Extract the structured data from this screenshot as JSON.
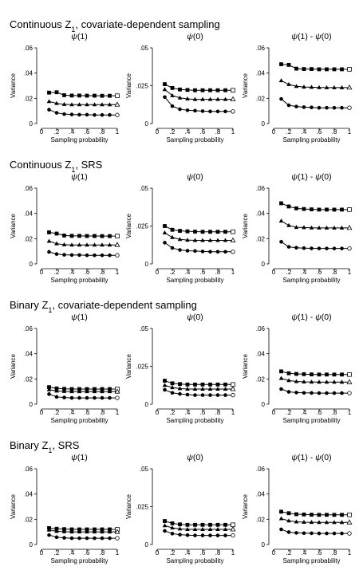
{
  "chart_data": [
    {
      "type": "line",
      "row_title": "Continuous Z1, covariate-dependent sampling",
      "title": "ψ(1)",
      "xlabel": "Sampling probability",
      "ylabel": "Variance",
      "xlim": [
        0,
        1
      ],
      "ylim": [
        0,
        0.06
      ],
      "xticks": [
        0,
        0.2,
        0.4,
        0.6,
        0.8,
        1
      ],
      "xticklabels": [
        "0",
        ".2",
        ".4",
        ".6",
        ".8",
        "1"
      ],
      "yticks": [
        0,
        0.02,
        0.04,
        0.06
      ],
      "yticklabels": [
        "0",
        ".02",
        ".04",
        ".06"
      ],
      "x": [
        0.1,
        0.2,
        0.3,
        0.4,
        0.5,
        0.6,
        0.7,
        0.8,
        0.9,
        1.0
      ],
      "series": [
        {
          "marker": "square",
          "values": [
            0.0245,
            0.0248,
            0.0225,
            0.0222,
            0.0222,
            0.0221,
            0.0221,
            0.022,
            0.022,
            0.022
          ]
        },
        {
          "marker": "triangle",
          "values": [
            0.0175,
            0.016,
            0.0152,
            0.015,
            0.015,
            0.015,
            0.015,
            0.015,
            0.015,
            0.015
          ]
        },
        {
          "marker": "circle",
          "values": [
            0.011,
            0.0085,
            0.0075,
            0.0072,
            0.007,
            0.007,
            0.0068,
            0.0068,
            0.0068,
            0.0068
          ]
        }
      ]
    },
    {
      "type": "line",
      "row_title": "Continuous Z1, covariate-dependent sampling",
      "title": "ψ(0)",
      "xlabel": "Sampling probability",
      "ylabel": "Variance",
      "xlim": [
        0,
        1
      ],
      "ylim": [
        0,
        0.05
      ],
      "xticks": [
        0,
        0.2,
        0.4,
        0.6,
        0.8,
        1
      ],
      "xticklabels": [
        "0",
        ".2",
        ".4",
        ".6",
        ".8",
        "1"
      ],
      "yticks": [
        0,
        0.025,
        0.05
      ],
      "yticklabels": [
        "0",
        ".025",
        ".05"
      ],
      "x": [
        0.1,
        0.2,
        0.3,
        0.4,
        0.5,
        0.6,
        0.7,
        0.8,
        0.9,
        1.0
      ],
      "series": [
        {
          "marker": "square",
          "values": [
            0.026,
            0.0235,
            0.0225,
            0.0222,
            0.022,
            0.022,
            0.022,
            0.022,
            0.022,
            0.022
          ]
        },
        {
          "marker": "triangle",
          "values": [
            0.0225,
            0.0185,
            0.017,
            0.0163,
            0.016,
            0.016,
            0.016,
            0.016,
            0.016,
            0.016
          ]
        },
        {
          "marker": "circle",
          "values": [
            0.0175,
            0.0115,
            0.0095,
            0.0088,
            0.0085,
            0.0082,
            0.008,
            0.008,
            0.008,
            0.008
          ]
        }
      ]
    },
    {
      "type": "line",
      "row_title": "Continuous Z1, covariate-dependent sampling",
      "title": "ψ(1) - ψ(0)",
      "xlabel": "Sampling probability",
      "ylabel": "Variance",
      "xlim": [
        0,
        1
      ],
      "ylim": [
        0,
        0.06
      ],
      "xticks": [
        0,
        0.2,
        0.4,
        0.6,
        0.8,
        1
      ],
      "xticklabels": [
        "0",
        ".2",
        ".4",
        ".6",
        ".8",
        "1"
      ],
      "yticks": [
        0,
        0.02,
        0.04,
        0.06
      ],
      "yticklabels": [
        "0",
        ".02",
        ".04",
        ".06"
      ],
      "x": [
        0.1,
        0.2,
        0.3,
        0.4,
        0.5,
        0.6,
        0.7,
        0.8,
        0.9,
        1.0
      ],
      "series": [
        {
          "marker": "square",
          "values": [
            0.047,
            0.0465,
            0.0435,
            0.0432,
            0.0432,
            0.043,
            0.043,
            0.043,
            0.043,
            0.043
          ]
        },
        {
          "marker": "triangle",
          "values": [
            0.034,
            0.031,
            0.0295,
            0.029,
            0.0288,
            0.0286,
            0.0285,
            0.0285,
            0.0285,
            0.0285
          ]
        },
        {
          "marker": "circle",
          "values": [
            0.0195,
            0.0145,
            0.0135,
            0.013,
            0.0128,
            0.0125,
            0.0125,
            0.0125,
            0.0125,
            0.0125
          ]
        }
      ]
    },
    {
      "type": "line",
      "row_title": "Continuous Z1, SRS",
      "title": "ψ(1)",
      "xlabel": "Sampling probability",
      "ylabel": "Variance",
      "xlim": [
        0,
        1
      ],
      "ylim": [
        0,
        0.06
      ],
      "xticks": [
        0,
        0.2,
        0.4,
        0.6,
        0.8,
        1
      ],
      "xticklabels": [
        "0",
        ".2",
        ".4",
        ".6",
        ".8",
        "1"
      ],
      "yticks": [
        0,
        0.02,
        0.04,
        0.06
      ],
      "yticklabels": [
        "0",
        ".02",
        ".04",
        ".06"
      ],
      "x": [
        0.1,
        0.2,
        0.3,
        0.4,
        0.5,
        0.6,
        0.7,
        0.8,
        0.9,
        1.0
      ],
      "series": [
        {
          "marker": "square",
          "values": [
            0.025,
            0.024,
            0.0225,
            0.0222,
            0.0222,
            0.0221,
            0.0221,
            0.022,
            0.022,
            0.022
          ]
        },
        {
          "marker": "triangle",
          "values": [
            0.018,
            0.016,
            0.0152,
            0.015,
            0.015,
            0.015,
            0.015,
            0.015,
            0.015,
            0.015
          ]
        },
        {
          "marker": "circle",
          "values": [
            0.0095,
            0.0078,
            0.0072,
            0.007,
            0.007,
            0.0068,
            0.0068,
            0.0068,
            0.0068,
            0.0068
          ]
        }
      ]
    },
    {
      "type": "line",
      "row_title": "Continuous Z1, SRS",
      "title": "ψ(0)",
      "xlabel": "Sampling probability",
      "ylabel": "Variance",
      "xlim": [
        0,
        1
      ],
      "ylim": [
        0,
        0.05
      ],
      "xticks": [
        0,
        0.2,
        0.4,
        0.6,
        0.8,
        1
      ],
      "xticklabels": [
        "0",
        ".2",
        ".4",
        ".6",
        ".8",
        "1"
      ],
      "yticks": [
        0,
        0.025,
        0.05
      ],
      "yticklabels": [
        "0",
        ".025",
        ".05"
      ],
      "x": [
        0.1,
        0.2,
        0.3,
        0.4,
        0.5,
        0.6,
        0.7,
        0.8,
        0.9,
        1.0
      ],
      "series": [
        {
          "marker": "square",
          "values": [
            0.025,
            0.0225,
            0.0218,
            0.0215,
            0.0213,
            0.0212,
            0.0212,
            0.0212,
            0.0212,
            0.0212
          ]
        },
        {
          "marker": "triangle",
          "values": [
            0.0205,
            0.0175,
            0.0162,
            0.0157,
            0.0155,
            0.0155,
            0.0155,
            0.0155,
            0.0155,
            0.0155
          ]
        },
        {
          "marker": "circle",
          "values": [
            0.014,
            0.0105,
            0.0092,
            0.0087,
            0.0085,
            0.0082,
            0.008,
            0.008,
            0.008,
            0.008
          ]
        }
      ]
    },
    {
      "type": "line",
      "row_title": "Continuous Z1, SRS",
      "title": "ψ(1) - ψ(0)",
      "xlabel": "Sampling probability",
      "ylabel": "Variance",
      "xlim": [
        0,
        1
      ],
      "ylim": [
        0,
        0.06
      ],
      "xticks": [
        0,
        0.2,
        0.4,
        0.6,
        0.8,
        1
      ],
      "xticklabels": [
        "0",
        ".2",
        ".4",
        ".6",
        ".8",
        "1"
      ],
      "yticks": [
        0,
        0.02,
        0.04,
        0.06
      ],
      "yticklabels": [
        "0",
        ".02",
        ".04",
        ".06"
      ],
      "x": [
        0.1,
        0.2,
        0.3,
        0.4,
        0.5,
        0.6,
        0.7,
        0.8,
        0.9,
        1.0
      ],
      "series": [
        {
          "marker": "square",
          "values": [
            0.048,
            0.0455,
            0.044,
            0.0435,
            0.0432,
            0.043,
            0.043,
            0.043,
            0.043,
            0.043
          ]
        },
        {
          "marker": "triangle",
          "values": [
            0.034,
            0.0305,
            0.029,
            0.0288,
            0.0286,
            0.0285,
            0.0285,
            0.0285,
            0.0285,
            0.0285
          ]
        },
        {
          "marker": "circle",
          "values": [
            0.0175,
            0.0135,
            0.0128,
            0.0125,
            0.0123,
            0.0122,
            0.0122,
            0.0122,
            0.0122,
            0.0122
          ]
        }
      ]
    },
    {
      "type": "line",
      "row_title": "Binary Z1, covariate-dependent sampling",
      "title": "ψ(1)",
      "xlabel": "Sampling probability",
      "ylabel": "Variance",
      "xlim": [
        0,
        1
      ],
      "ylim": [
        0,
        0.06
      ],
      "xticks": [
        0,
        0.2,
        0.4,
        0.6,
        0.8,
        1
      ],
      "xticklabels": [
        "0",
        ".2",
        ".4",
        ".6",
        ".8",
        "1"
      ],
      "yticks": [
        0,
        0.02,
        0.04,
        0.06
      ],
      "yticklabels": [
        "0",
        ".02",
        ".04",
        ".06"
      ],
      "x": [
        0.1,
        0.2,
        0.3,
        0.4,
        0.5,
        0.6,
        0.7,
        0.8,
        0.9,
        1.0
      ],
      "series": [
        {
          "marker": "square",
          "values": [
            0.0135,
            0.0125,
            0.0122,
            0.012,
            0.012,
            0.012,
            0.012,
            0.012,
            0.012,
            0.012
          ]
        },
        {
          "marker": "triangle",
          "values": [
            0.0115,
            0.0105,
            0.0102,
            0.01,
            0.01,
            0.01,
            0.01,
            0.01,
            0.01,
            0.01
          ]
        },
        {
          "marker": "circle",
          "values": [
            0.008,
            0.0058,
            0.0053,
            0.005,
            0.005,
            0.005,
            0.005,
            0.005,
            0.005,
            0.005
          ]
        }
      ]
    },
    {
      "type": "line",
      "row_title": "Binary Z1, covariate-dependent sampling",
      "title": "ψ(0)",
      "xlabel": "Sampling probability",
      "ylabel": "Variance",
      "xlim": [
        0,
        1
      ],
      "ylim": [
        0,
        0.05
      ],
      "xticks": [
        0,
        0.2,
        0.4,
        0.6,
        0.8,
        1
      ],
      "xticklabels": [
        "0",
        ".2",
        ".4",
        ".6",
        ".8",
        "1"
      ],
      "yticks": [
        0,
        0.025,
        0.05
      ],
      "yticklabels": [
        "0",
        ".025",
        ".05"
      ],
      "x": [
        0.1,
        0.2,
        0.3,
        0.4,
        0.5,
        0.6,
        0.7,
        0.8,
        0.9,
        1.0
      ],
      "series": [
        {
          "marker": "square",
          "values": [
            0.0155,
            0.0138,
            0.0133,
            0.013,
            0.013,
            0.013,
            0.013,
            0.013,
            0.013,
            0.013
          ]
        },
        {
          "marker": "triangle",
          "values": [
            0.0125,
            0.011,
            0.0103,
            0.01,
            0.01,
            0.01,
            0.01,
            0.01,
            0.01,
            0.01
          ]
        },
        {
          "marker": "circle",
          "values": [
            0.0095,
            0.0075,
            0.0068,
            0.0063,
            0.006,
            0.006,
            0.006,
            0.006,
            0.006,
            0.006
          ]
        }
      ]
    },
    {
      "type": "line",
      "row_title": "Binary Z1, covariate-dependent sampling",
      "title": "ψ(1) - ψ(0)",
      "xlabel": "Sampling probability",
      "ylabel": "Variance",
      "xlim": [
        0,
        1
      ],
      "ylim": [
        0,
        0.06
      ],
      "xticks": [
        0,
        0.2,
        0.4,
        0.6,
        0.8,
        1
      ],
      "xticklabels": [
        "0",
        ".2",
        ".4",
        ".6",
        ".8",
        "1"
      ],
      "yticks": [
        0,
        0.02,
        0.04,
        0.06
      ],
      "yticklabels": [
        "0",
        ".02",
        ".04",
        ".06"
      ],
      "x": [
        0.1,
        0.2,
        0.3,
        0.4,
        0.5,
        0.6,
        0.7,
        0.8,
        0.9,
        1.0
      ],
      "series": [
        {
          "marker": "square",
          "values": [
            0.026,
            0.0245,
            0.024,
            0.0238,
            0.0236,
            0.0235,
            0.0235,
            0.0235,
            0.0235,
            0.0235
          ]
        },
        {
          "marker": "triangle",
          "values": [
            0.0205,
            0.0188,
            0.018,
            0.0177,
            0.0176,
            0.0175,
            0.0175,
            0.0175,
            0.0175,
            0.0175
          ]
        },
        {
          "marker": "circle",
          "values": [
            0.012,
            0.0098,
            0.0092,
            0.009,
            0.0089,
            0.0088,
            0.0088,
            0.0088,
            0.0088,
            0.0088
          ]
        }
      ]
    },
    {
      "type": "line",
      "row_title": "Binary Z1, SRS",
      "title": "ψ(1)",
      "xlabel": "Sampling probability",
      "ylabel": "Variance",
      "xlim": [
        0,
        1
      ],
      "ylim": [
        0,
        0.06
      ],
      "xticks": [
        0,
        0.2,
        0.4,
        0.6,
        0.8,
        1
      ],
      "xticklabels": [
        "0",
        ".2",
        ".4",
        ".6",
        ".8",
        "1"
      ],
      "yticks": [
        0,
        0.02,
        0.04,
        0.06
      ],
      "yticklabels": [
        "0",
        ".02",
        ".04",
        ".06"
      ],
      "x": [
        0.1,
        0.2,
        0.3,
        0.4,
        0.5,
        0.6,
        0.7,
        0.8,
        0.9,
        1.0
      ],
      "series": [
        {
          "marker": "square",
          "values": [
            0.013,
            0.0125,
            0.0122,
            0.012,
            0.012,
            0.012,
            0.012,
            0.012,
            0.012,
            0.012
          ]
        },
        {
          "marker": "triangle",
          "values": [
            0.0115,
            0.0105,
            0.0102,
            0.01,
            0.01,
            0.01,
            0.01,
            0.01,
            0.01,
            0.01
          ]
        },
        {
          "marker": "circle",
          "values": [
            0.0075,
            0.0058,
            0.0053,
            0.005,
            0.005,
            0.005,
            0.005,
            0.005,
            0.005,
            0.005
          ]
        }
      ]
    },
    {
      "type": "line",
      "row_title": "Binary Z1, SRS",
      "title": "ψ(0)",
      "xlabel": "Sampling probability",
      "ylabel": "Variance",
      "xlim": [
        0,
        1
      ],
      "ylim": [
        0,
        0.05
      ],
      "xticks": [
        0,
        0.2,
        0.4,
        0.6,
        0.8,
        1
      ],
      "xticklabels": [
        "0",
        ".2",
        ".4",
        ".6",
        ".8",
        "1"
      ],
      "yticks": [
        0,
        0.025,
        0.05
      ],
      "yticklabels": [
        "0",
        ".025",
        ".05"
      ],
      "x": [
        0.1,
        0.2,
        0.3,
        0.4,
        0.5,
        0.6,
        0.7,
        0.8,
        0.9,
        1.0
      ],
      "series": [
        {
          "marker": "square",
          "values": [
            0.0155,
            0.014,
            0.0133,
            0.013,
            0.013,
            0.013,
            0.013,
            0.013,
            0.013,
            0.013
          ]
        },
        {
          "marker": "triangle",
          "values": [
            0.0125,
            0.011,
            0.0103,
            0.01,
            0.01,
            0.01,
            0.01,
            0.01,
            0.01,
            0.01
          ]
        },
        {
          "marker": "circle",
          "values": [
            0.009,
            0.0072,
            0.0065,
            0.0062,
            0.006,
            0.006,
            0.006,
            0.006,
            0.006,
            0.006
          ]
        }
      ]
    },
    {
      "type": "line",
      "row_title": "Binary Z1, SRS",
      "title": "ψ(1) - ψ(0)",
      "xlabel": "Sampling probability",
      "ylabel": "Variance",
      "xlim": [
        0,
        1
      ],
      "ylim": [
        0,
        0.06
      ],
      "xticks": [
        0,
        0.2,
        0.4,
        0.6,
        0.8,
        1
      ],
      "xticklabels": [
        "0",
        ".2",
        ".4",
        ".6",
        ".8",
        "1"
      ],
      "yticks": [
        0,
        0.02,
        0.04,
        0.06
      ],
      "yticklabels": [
        "0",
        ".02",
        ".04",
        ".06"
      ],
      "x": [
        0.1,
        0.2,
        0.3,
        0.4,
        0.5,
        0.6,
        0.7,
        0.8,
        0.9,
        1.0
      ],
      "series": [
        {
          "marker": "square",
          "values": [
            0.026,
            0.0248,
            0.024,
            0.0238,
            0.0236,
            0.0235,
            0.0235,
            0.0235,
            0.0235,
            0.0235
          ]
        },
        {
          "marker": "triangle",
          "values": [
            0.0205,
            0.0188,
            0.018,
            0.0177,
            0.0176,
            0.0175,
            0.0175,
            0.0175,
            0.0175,
            0.0175
          ]
        },
        {
          "marker": "circle",
          "values": [
            0.012,
            0.0098,
            0.0092,
            0.009,
            0.0089,
            0.0088,
            0.0088,
            0.0088,
            0.0088,
            0.0088
          ]
        }
      ]
    }
  ]
}
